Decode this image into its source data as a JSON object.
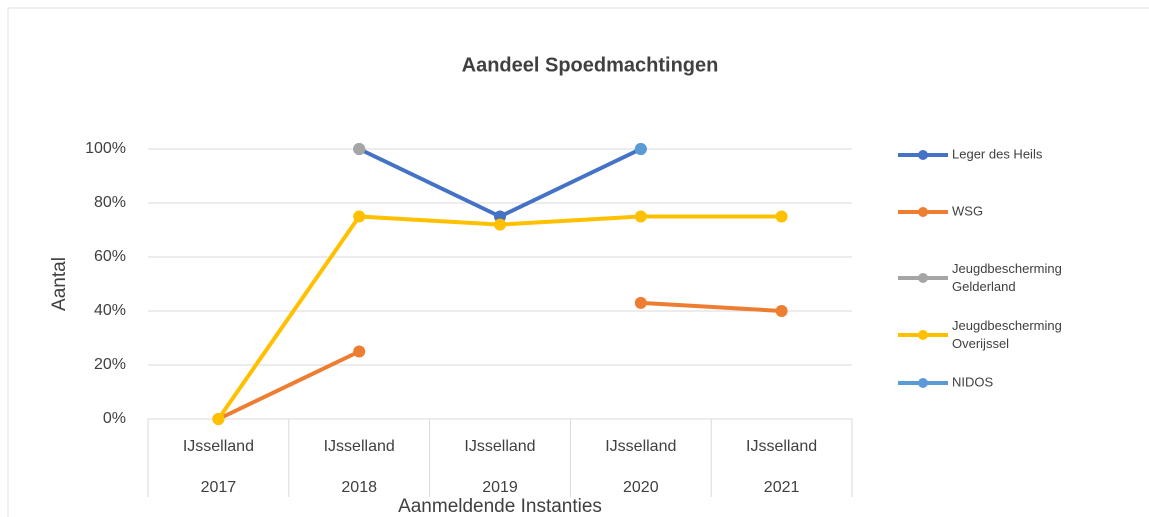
{
  "chart_data": {
    "type": "line",
    "title": "Aandeel Spoedmachtingen",
    "x_label": "Aanmeldende Instanties",
    "y_label": "Aantal",
    "categories": [
      [
        "IJsselland",
        "2017"
      ],
      [
        "IJsselland",
        "2018"
      ],
      [
        "IJsselland",
        "2019"
      ],
      [
        "IJsselland",
        "2020"
      ],
      [
        "IJsselland",
        "2021"
      ]
    ],
    "series": [
      {
        "name": "Leger des Heils",
        "color": "#4472c4",
        "values": [
          null,
          100,
          75,
          100,
          null
        ]
      },
      {
        "name": "WSG",
        "color": "#ed7d31",
        "values": [
          0,
          25,
          null,
          43,
          40
        ]
      },
      {
        "name": "Jeugdbescherming Gelderland",
        "color": "#a5a5a5",
        "values": [
          null,
          100,
          null,
          null,
          null
        ]
      },
      {
        "name": "Jeugdbescherming Overijssel",
        "color": "#ffc000",
        "values": [
          0,
          75,
          72,
          75,
          75
        ]
      },
      {
        "name": "NIDOS",
        "color": "#5b9bd5",
        "values": [
          null,
          null,
          null,
          100,
          null
        ]
      }
    ],
    "ylim": [
      0,
      100
    ],
    "yticks": [
      {
        "value": 0,
        "label": "0%"
      },
      {
        "value": 20,
        "label": "20%"
      },
      {
        "value": 40,
        "label": "40%"
      },
      {
        "value": 60,
        "label": "60%"
      },
      {
        "value": 80,
        "label": "80%"
      },
      {
        "value": 100,
        "label": "100%"
      }
    ],
    "grid": true,
    "legend": "right"
  }
}
